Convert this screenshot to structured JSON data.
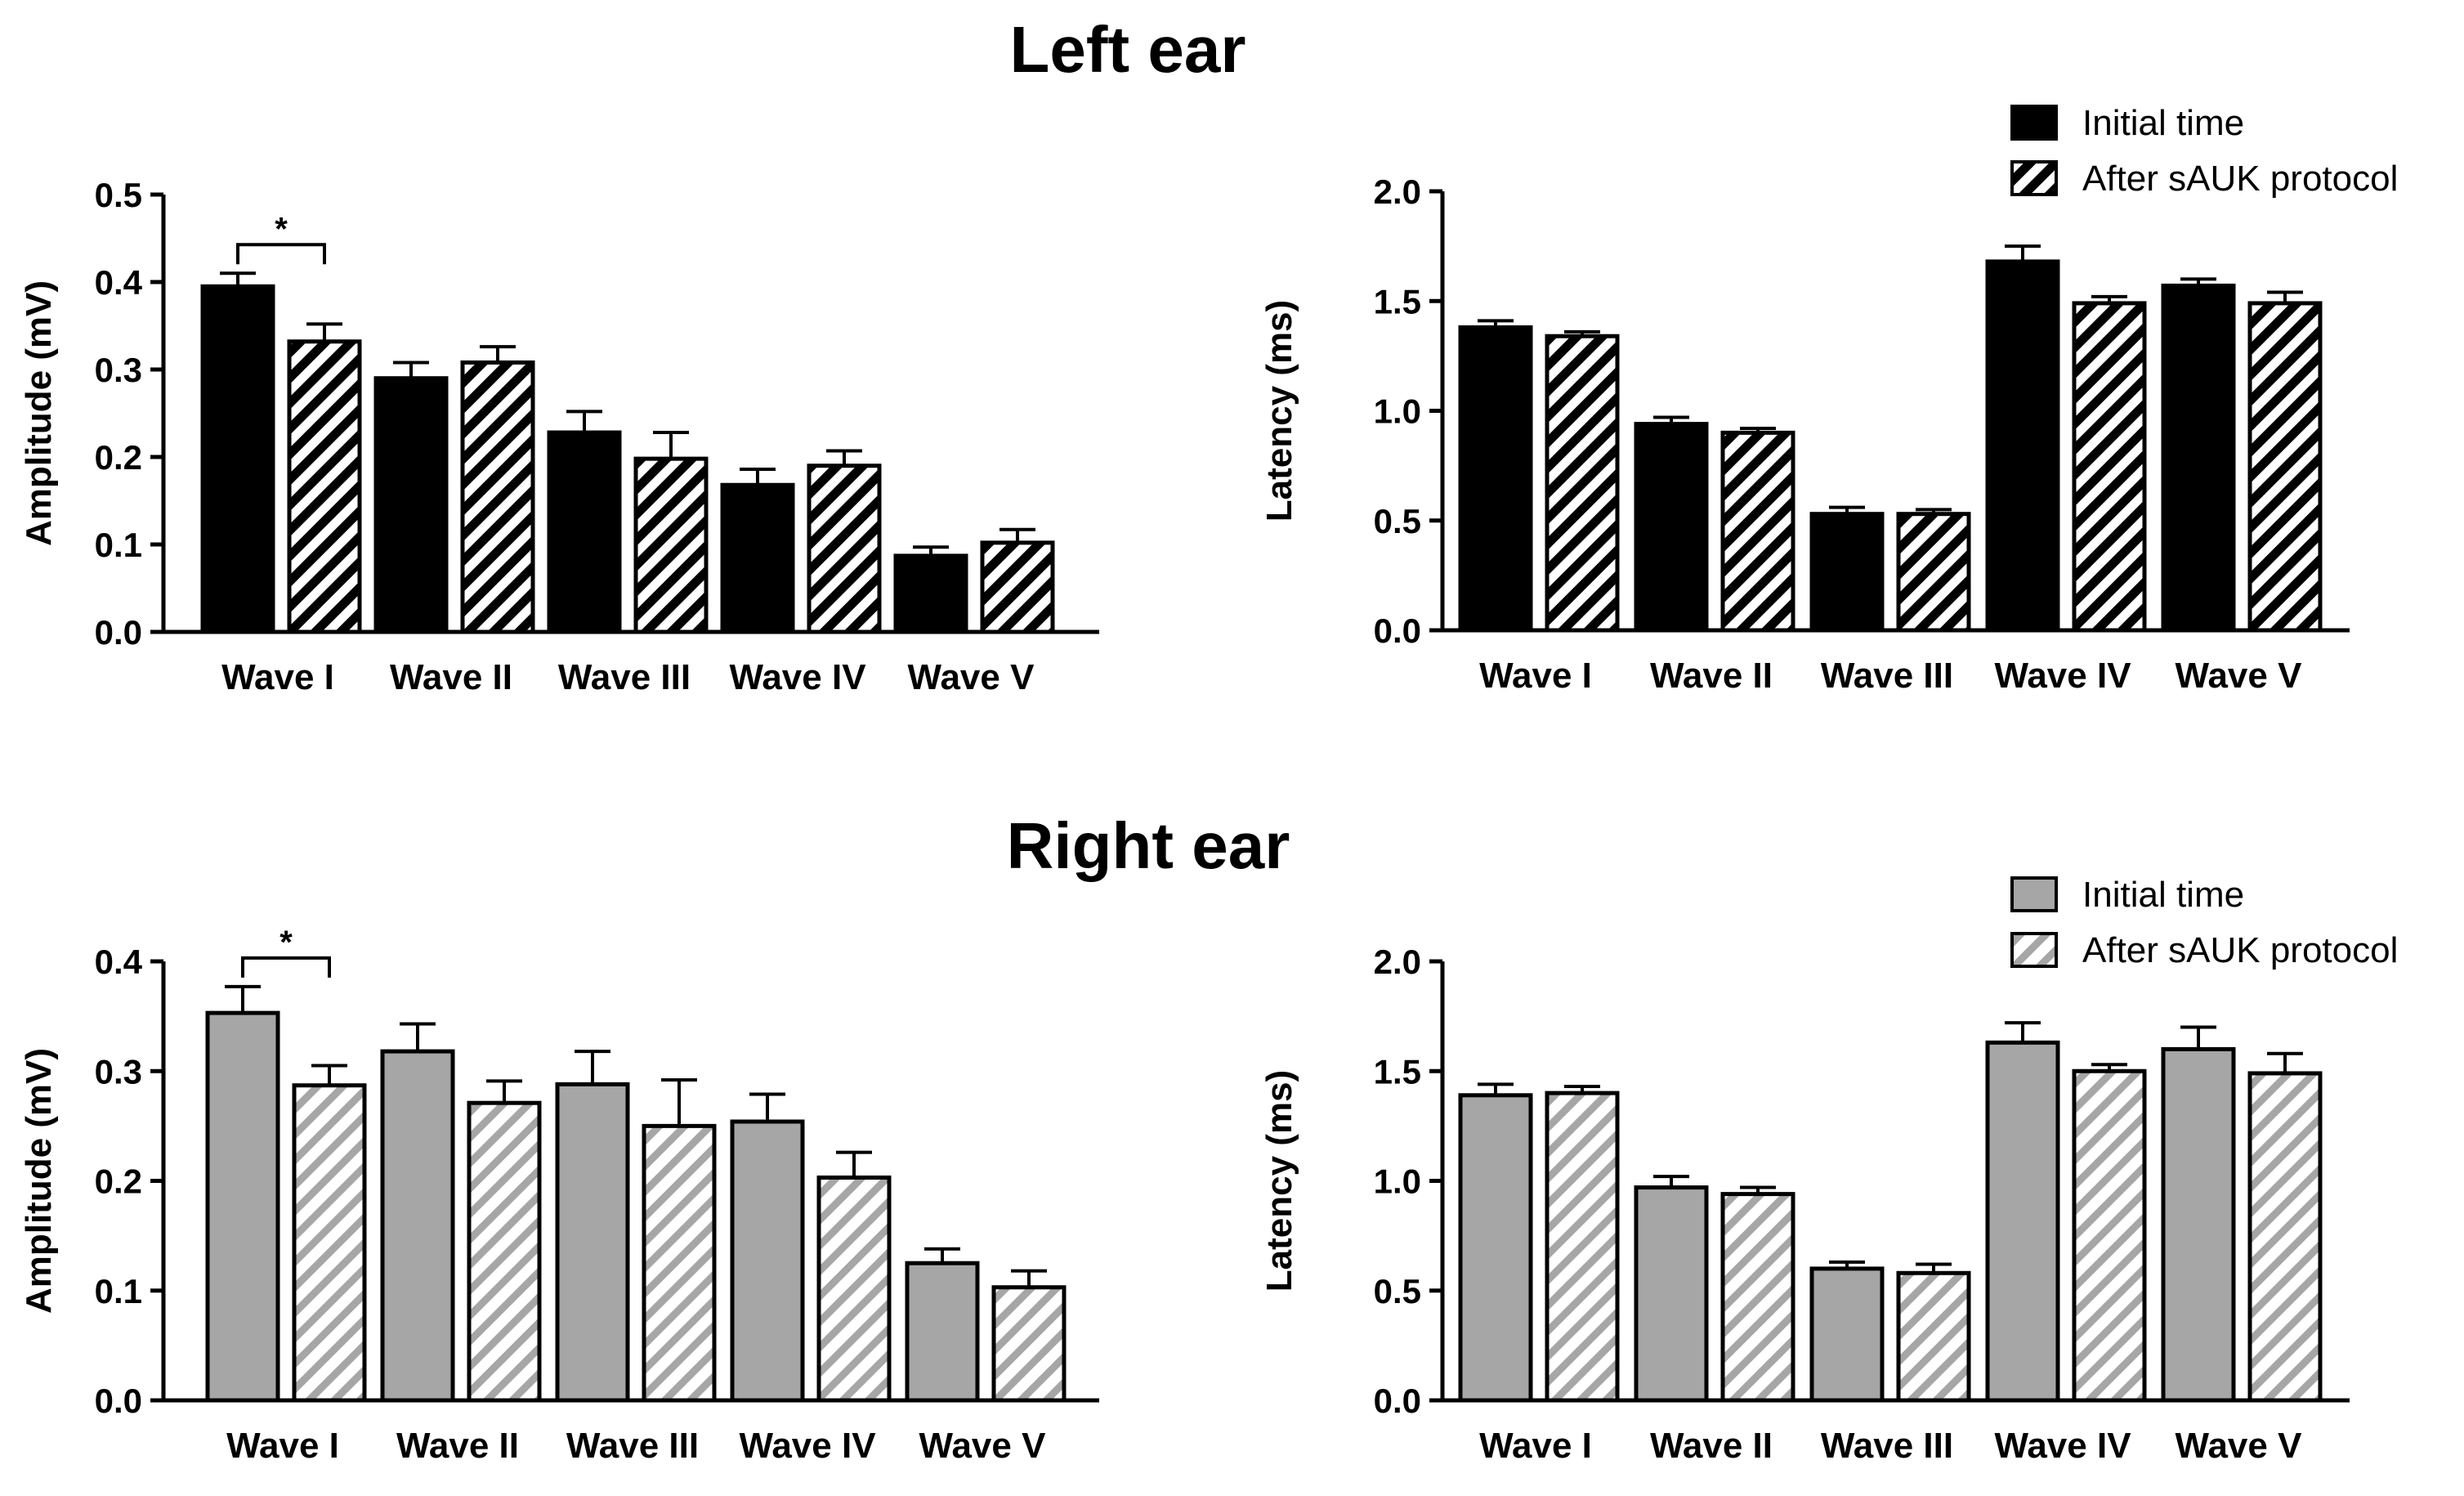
{
  "sections": [
    {
      "title": "Left ear"
    },
    {
      "title": "Right ear"
    }
  ],
  "colors": {
    "left_fill": "#000000",
    "right_fill": "#a6a6a6",
    "stroke": "#000000",
    "hatch_bg": "#ffffff"
  },
  "legends": [
    {
      "items": [
        "Initial time",
        "After sAUK protocol"
      ]
    },
    {
      "items": [
        "Initial time",
        "After sAUK protocol"
      ]
    }
  ],
  "chart_data": [
    {
      "id": "left-amplitude",
      "type": "bar",
      "ear": "Left ear",
      "categories": [
        "Wave I",
        "Wave II",
        "Wave III",
        "Wave IV",
        "Wave V"
      ],
      "ylabel": "Amplitude (mV)",
      "ylim": [
        0,
        0.5
      ],
      "yticks": [
        "0.0",
        "0.1",
        "0.2",
        "0.3",
        "0.4",
        "0.5"
      ],
      "series": [
        {
          "name": "Initial time",
          "values": [
            0.395,
            0.29,
            0.228,
            0.168,
            0.087
          ],
          "errors": [
            0.015,
            0.018,
            0.024,
            0.018,
            0.01
          ]
        },
        {
          "name": "After sAUK protocol",
          "values": [
            0.332,
            0.308,
            0.198,
            0.19,
            0.102
          ],
          "errors": [
            0.02,
            0.018,
            0.03,
            0.017,
            0.015
          ]
        }
      ],
      "significance": [
        {
          "category": "Wave I",
          "label": "*"
        }
      ]
    },
    {
      "id": "left-latency",
      "type": "bar",
      "ear": "Left ear",
      "categories": [
        "Wave I",
        "Wave II",
        "Wave III",
        "Wave IV",
        "Wave V"
      ],
      "ylabel": "Latency (ms)",
      "ylim": [
        0,
        2.0
      ],
      "yticks": [
        "0.0",
        "0.5",
        "1.0",
        "1.5",
        "2.0"
      ],
      "series": [
        {
          "name": "Initial time",
          "values": [
            1.38,
            0.94,
            0.53,
            1.68,
            1.57
          ],
          "errors": [
            0.03,
            0.03,
            0.03,
            0.07,
            0.03
          ]
        },
        {
          "name": "After sAUK protocol",
          "values": [
            1.34,
            0.9,
            0.53,
            1.49,
            1.49
          ],
          "errors": [
            0.02,
            0.02,
            0.02,
            0.03,
            0.05
          ]
        }
      ]
    },
    {
      "id": "right-amplitude",
      "type": "bar",
      "ear": "Right ear",
      "categories": [
        "Wave I",
        "Wave II",
        "Wave III",
        "Wave IV",
        "Wave V"
      ],
      "ylabel": "Amplitude (mV)",
      "ylim": [
        0,
        0.4
      ],
      "yticks": [
        "0.0",
        "0.1",
        "0.2",
        "0.3",
        "0.4"
      ],
      "series": [
        {
          "name": "Initial time",
          "values": [
            0.353,
            0.318,
            0.288,
            0.254,
            0.125
          ],
          "errors": [
            0.024,
            0.025,
            0.03,
            0.025,
            0.013
          ]
        },
        {
          "name": "After sAUK protocol",
          "values": [
            0.287,
            0.271,
            0.25,
            0.203,
            0.103
          ],
          "errors": [
            0.018,
            0.02,
            0.042,
            0.023,
            0.015
          ]
        }
      ],
      "significance": [
        {
          "category": "Wave I",
          "label": "*"
        }
      ]
    },
    {
      "id": "right-latency",
      "type": "bar",
      "ear": "Right ear",
      "categories": [
        "Wave I",
        "Wave II",
        "Wave III",
        "Wave IV",
        "Wave V"
      ],
      "ylabel": "Latency (ms)",
      "ylim": [
        0,
        2.0
      ],
      "yticks": [
        "0.0",
        "0.5",
        "1.0",
        "1.5",
        "2.0"
      ],
      "series": [
        {
          "name": "Initial time",
          "values": [
            1.39,
            0.97,
            0.6,
            1.63,
            1.6
          ],
          "errors": [
            0.05,
            0.05,
            0.03,
            0.09,
            0.1
          ]
        },
        {
          "name": "After sAUK protocol",
          "values": [
            1.4,
            0.94,
            0.58,
            1.5,
            1.49
          ],
          "errors": [
            0.03,
            0.03,
            0.04,
            0.03,
            0.09
          ]
        }
      ]
    }
  ]
}
